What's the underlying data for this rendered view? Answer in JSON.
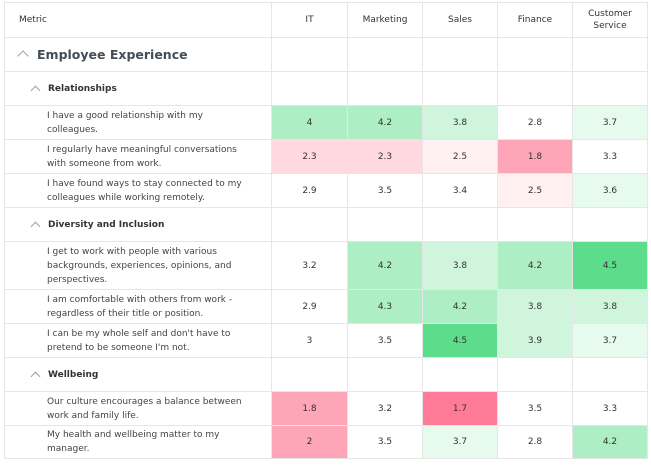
{
  "columns": {
    "metric": "Metric",
    "it": "IT",
    "marketing": "Marketing",
    "sales": "Sales",
    "finance": "Finance",
    "customer_service": "Customer Service"
  },
  "sections": [
    {
      "title": "Employee Experience",
      "subsections": [
        {
          "title": "Relationships",
          "rows": [
            {
              "label": "I have a good relationship with my colleagues.",
              "values": [
                "4",
                "4.2",
                "3.8",
                "2.8",
                "3.7"
              ]
            },
            {
              "label": "I regularly have meaningful conversations with someone from work.",
              "values": [
                "2.3",
                "2.3",
                "2.5",
                "1.8",
                "3.3"
              ]
            },
            {
              "label": "I have found ways to stay connected to my colleagues while working remotely.",
              "values": [
                "2.9",
                "3.5",
                "3.4",
                "2.5",
                "3.6"
              ]
            }
          ]
        },
        {
          "title": "Diversity and Inclusion",
          "rows": [
            {
              "label": "I get to work with people with various backgrounds, experiences, opinions, and perspectives.",
              "values": [
                "3.2",
                "4.2",
                "3.8",
                "4.2",
                "4.5"
              ]
            },
            {
              "label": "I am comfortable with others from work - regardless of their title or position.",
              "values": [
                "2.9",
                "4.3",
                "4.2",
                "3.8",
                "3.8"
              ]
            },
            {
              "label": "I can be my whole self and don't have to pretend to be someone I'm not.",
              "values": [
                "3",
                "3.5",
                "4.5",
                "3.9",
                "3.7"
              ]
            }
          ]
        },
        {
          "title": "Wellbeing",
          "rows": [
            {
              "label": "Our culture encourages a balance between work and family life.",
              "values": [
                "1.8",
                "3.2",
                "1.7",
                "3.5",
                "3.3"
              ]
            },
            {
              "label": "My health and wellbeing matter to my manager.",
              "values": [
                "2",
                "3.5",
                "3.7",
                "2.8",
                "4.2"
              ]
            }
          ]
        }
      ]
    }
  ],
  "colors": {
    "g5": "#5ddd8b",
    "g4": "#adeec4",
    "g3": "#cff5dc",
    "g2": "#e7faee",
    "r1": "#ff7a96",
    "r2": "#fea5b8",
    "r3": "#ffd8e0",
    "r4": "#fff0f3",
    "neutral": "#ffffff"
  }
}
